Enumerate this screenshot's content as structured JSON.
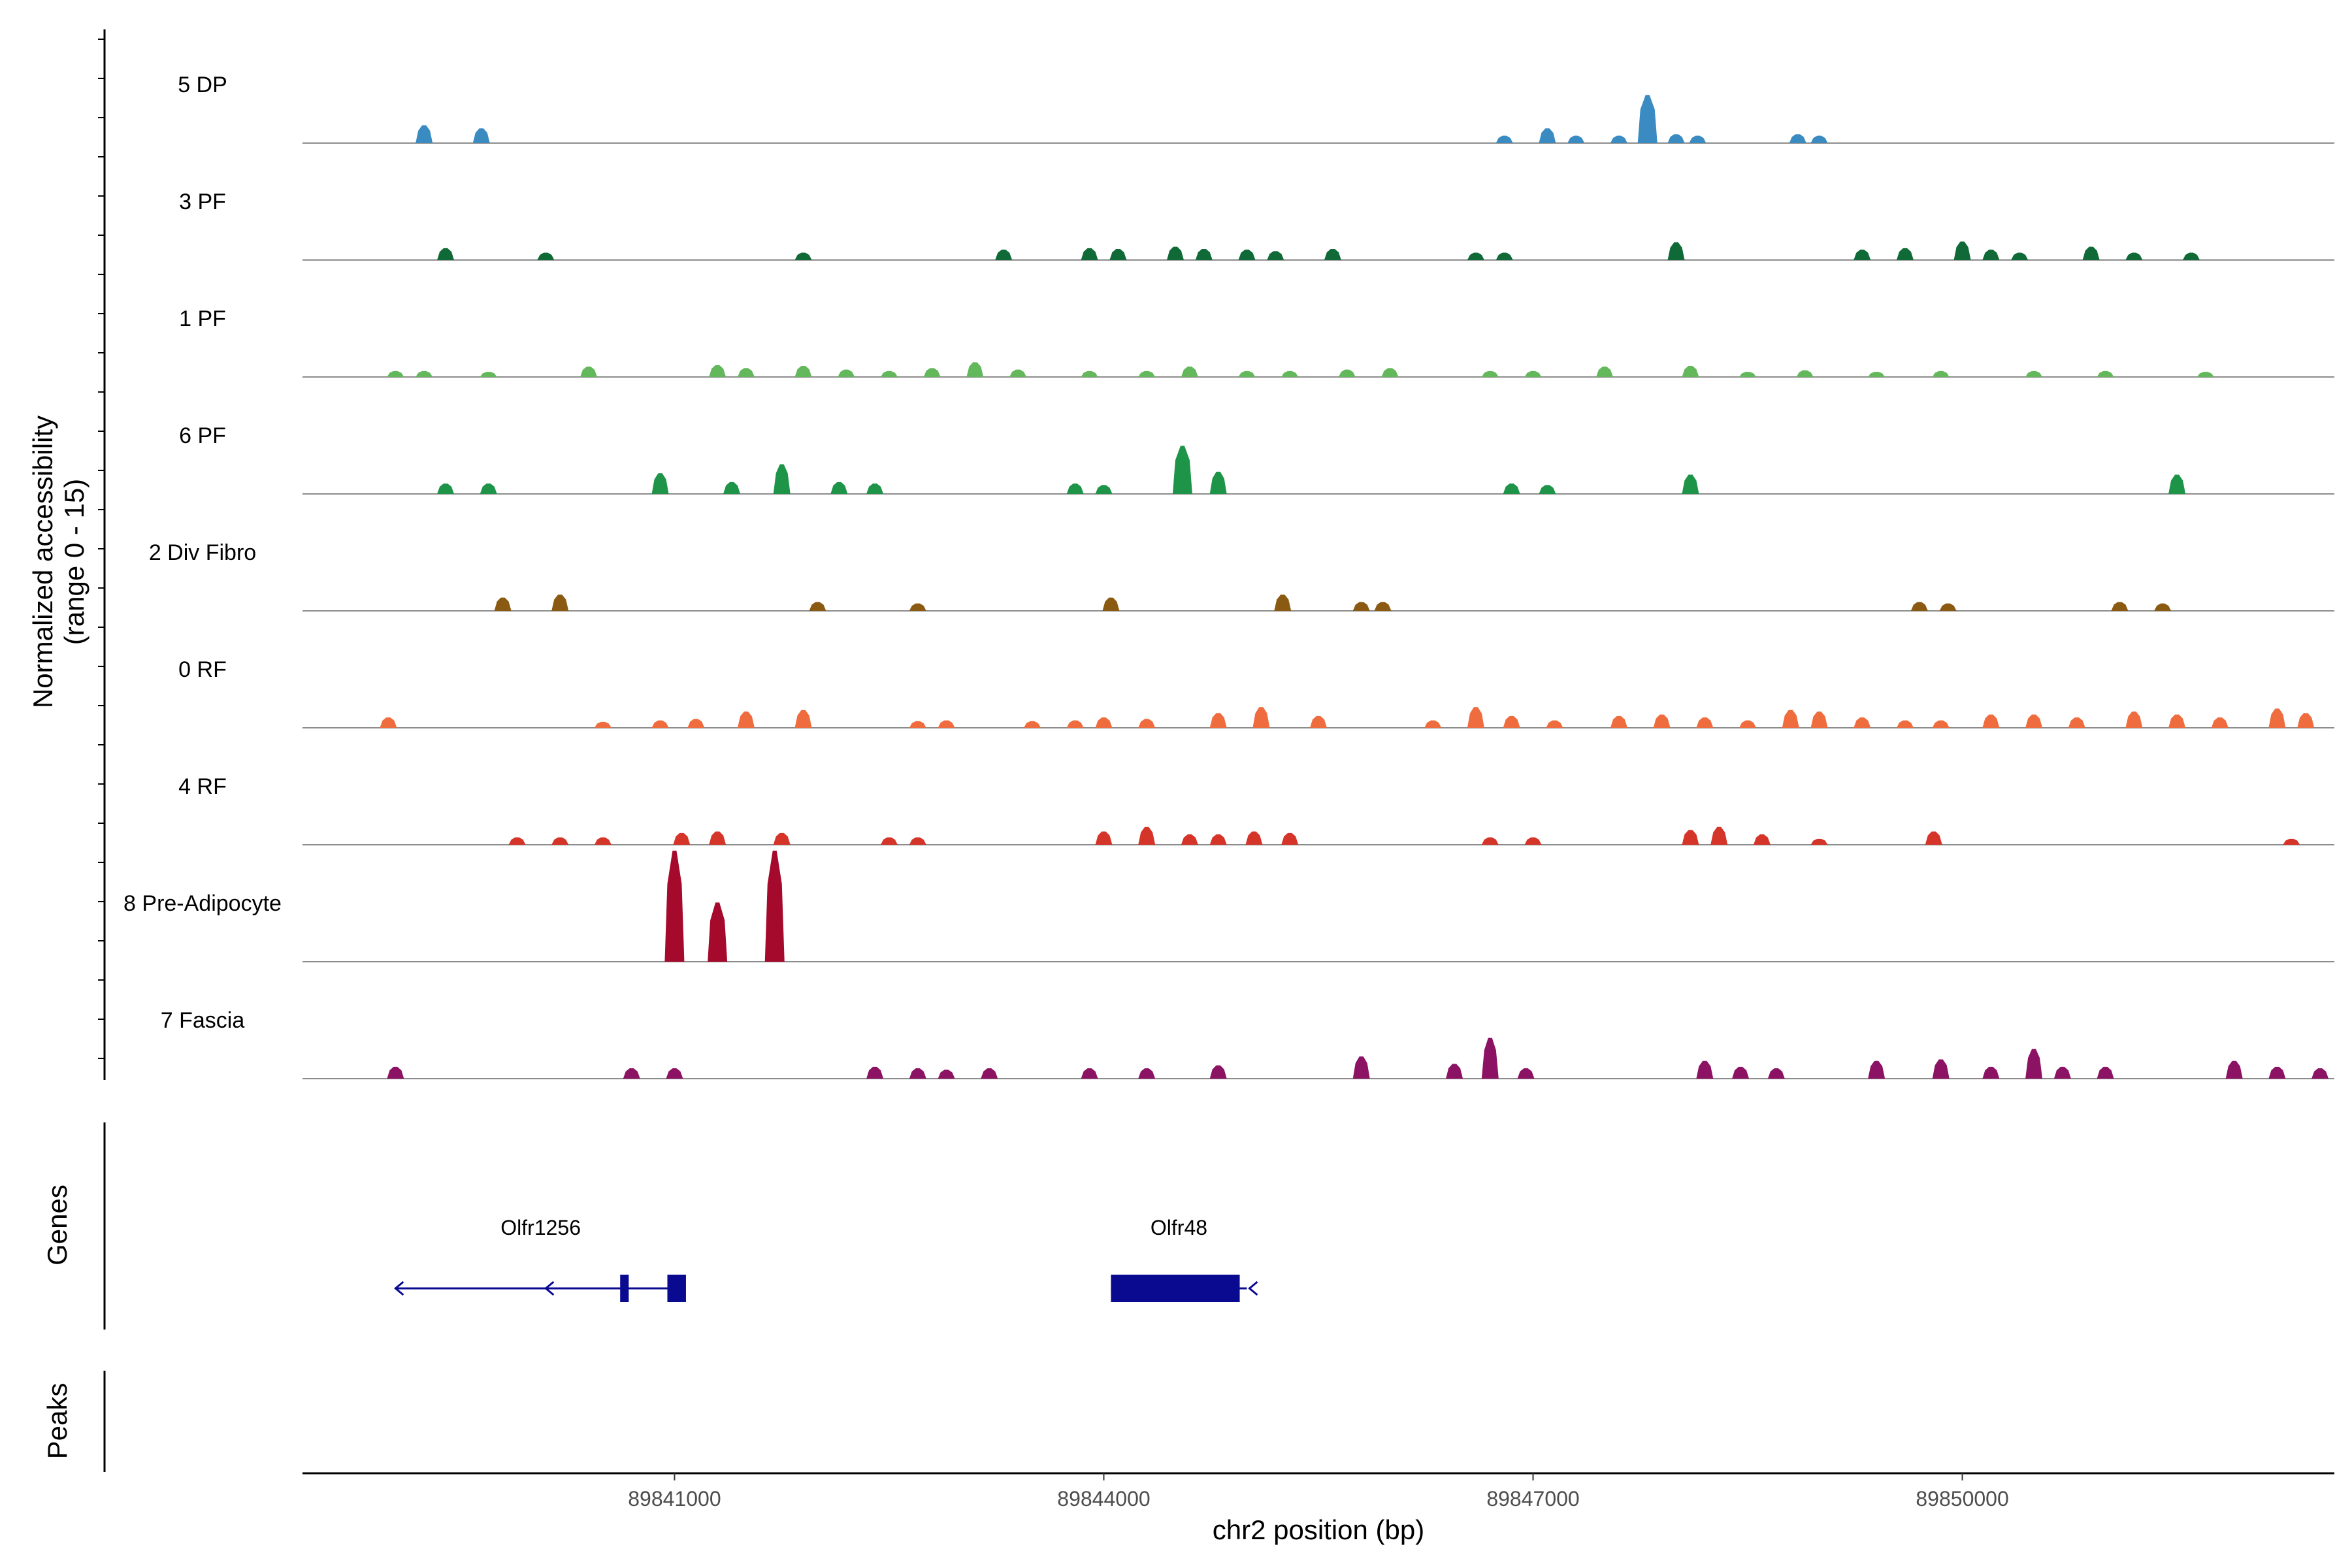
{
  "chart_data": {
    "type": "area",
    "subtype": "genome-coverage",
    "ylabel_line1": "Normalized accessibility",
    "ylabel_line2": "(range 0 - 15)",
    "ylim": [
      0,
      15
    ],
    "xlabel": "chr2 position (bp)",
    "xlim": [
      89838400,
      89852600
    ],
    "x_ticks": [
      89841000,
      89844000,
      89847000,
      89850000
    ],
    "x_tick_labels": [
      "89841000",
      "89844000",
      "89847000",
      "89850000"
    ],
    "series": [
      {
        "name": "5 DP",
        "color": "#3a8bc2",
        "peaks": [
          [
            89839250,
            2.4
          ],
          [
            89839650,
            2.0
          ],
          [
            89846800,
            1.0
          ],
          [
            89847100,
            2.0
          ],
          [
            89847300,
            1.0
          ],
          [
            89847800,
            6.5
          ],
          [
            89847600,
            1.0
          ],
          [
            89848000,
            1.2
          ],
          [
            89848150,
            1.0
          ],
          [
            89848850,
            1.2
          ],
          [
            89849000,
            1.0
          ]
        ]
      },
      {
        "name": "3 PF",
        "color": "#0f6a37",
        "peaks": [
          [
            89839400,
            1.6
          ],
          [
            89840100,
            1.0
          ],
          [
            89841900,
            1.0
          ],
          [
            89843300,
            1.4
          ],
          [
            89843900,
            1.6
          ],
          [
            89844100,
            1.5
          ],
          [
            89844500,
            1.8
          ],
          [
            89844700,
            1.5
          ],
          [
            89845000,
            1.4
          ],
          [
            89845200,
            1.2
          ],
          [
            89845600,
            1.5
          ],
          [
            89846600,
            1.0
          ],
          [
            89846800,
            1.0
          ],
          [
            89848000,
            2.4
          ],
          [
            89849300,
            1.4
          ],
          [
            89849600,
            1.6
          ],
          [
            89850000,
            2.5
          ],
          [
            89850200,
            1.4
          ],
          [
            89850400,
            1.0
          ],
          [
            89850900,
            1.8
          ],
          [
            89851200,
            1.0
          ],
          [
            89851600,
            1.0
          ]
        ]
      },
      {
        "name": "1 PF",
        "color": "#63b85b",
        "peaks": [
          [
            89839050,
            0.8
          ],
          [
            89839250,
            0.8
          ],
          [
            89839700,
            0.7
          ],
          [
            89840400,
            1.4
          ],
          [
            89841300,
            1.6
          ],
          [
            89841500,
            1.2
          ],
          [
            89841900,
            1.5
          ],
          [
            89842200,
            1.0
          ],
          [
            89842500,
            0.8
          ],
          [
            89842800,
            1.2
          ],
          [
            89843100,
            2.0
          ],
          [
            89843400,
            1.0
          ],
          [
            89843900,
            0.8
          ],
          [
            89844300,
            0.8
          ],
          [
            89844600,
            1.4
          ],
          [
            89845000,
            0.8
          ],
          [
            89845300,
            0.8
          ],
          [
            89845700,
            1.0
          ],
          [
            89846000,
            1.2
          ],
          [
            89846700,
            0.8
          ],
          [
            89847000,
            0.8
          ],
          [
            89847500,
            1.4
          ],
          [
            89848100,
            1.5
          ],
          [
            89848500,
            0.7
          ],
          [
            89848900,
            0.9
          ],
          [
            89849400,
            0.7
          ],
          [
            89849850,
            0.8
          ],
          [
            89850500,
            0.8
          ],
          [
            89851000,
            0.8
          ],
          [
            89851700,
            0.7
          ]
        ]
      },
      {
        "name": "6 PF",
        "color": "#1d9448",
        "peaks": [
          [
            89839400,
            1.4
          ],
          [
            89839700,
            1.4
          ],
          [
            89840900,
            2.8
          ],
          [
            89841400,
            1.6
          ],
          [
            89841750,
            4.0
          ],
          [
            89842150,
            1.6
          ],
          [
            89842400,
            1.4
          ],
          [
            89843800,
            1.4
          ],
          [
            89844000,
            1.2
          ],
          [
            89844550,
            6.5
          ],
          [
            89844800,
            3.0
          ],
          [
            89846850,
            1.4
          ],
          [
            89847100,
            1.2
          ],
          [
            89848100,
            2.6
          ],
          [
            89851500,
            2.6
          ]
        ]
      },
      {
        "name": "2 Div Fibro",
        "color": "#8b5a12",
        "peaks": [
          [
            89839800,
            1.8
          ],
          [
            89840200,
            2.2
          ],
          [
            89842000,
            1.2
          ],
          [
            89842700,
            1.0
          ],
          [
            89844050,
            1.8
          ],
          [
            89845250,
            2.2
          ],
          [
            89845800,
            1.2
          ],
          [
            89845950,
            1.2
          ],
          [
            89849700,
            1.2
          ],
          [
            89849900,
            1.0
          ],
          [
            89851100,
            1.2
          ],
          [
            89851400,
            1.0
          ]
        ]
      },
      {
        "name": "0 RF",
        "color": "#ef6c3e",
        "peaks": [
          [
            89839000,
            1.4
          ],
          [
            89840500,
            0.8
          ],
          [
            89840900,
            1.0
          ],
          [
            89841150,
            1.2
          ],
          [
            89841500,
            2.2
          ],
          [
            89841900,
            2.4
          ],
          [
            89842700,
            0.9
          ],
          [
            89842900,
            1.0
          ],
          [
            89843500,
            0.9
          ],
          [
            89843800,
            1.0
          ],
          [
            89844000,
            1.4
          ],
          [
            89844300,
            1.2
          ],
          [
            89844800,
            2.0
          ],
          [
            89845100,
            2.8
          ],
          [
            89845500,
            1.6
          ],
          [
            89846300,
            1.0
          ],
          [
            89846600,
            2.8
          ],
          [
            89846850,
            1.6
          ],
          [
            89847150,
            1.0
          ],
          [
            89847600,
            1.6
          ],
          [
            89847900,
            1.8
          ],
          [
            89848200,
            1.4
          ],
          [
            89848500,
            1.0
          ],
          [
            89848800,
            2.4
          ],
          [
            89849000,
            2.2
          ],
          [
            89849300,
            1.4
          ],
          [
            89849600,
            1.0
          ],
          [
            89849850,
            1.0
          ],
          [
            89850200,
            1.8
          ],
          [
            89850500,
            1.8
          ],
          [
            89850800,
            1.4
          ],
          [
            89851200,
            2.2
          ],
          [
            89851500,
            1.8
          ],
          [
            89851800,
            1.4
          ],
          [
            89852200,
            2.6
          ],
          [
            89852400,
            2.0
          ]
        ]
      },
      {
        "name": "4 RF",
        "color": "#d53428",
        "peaks": [
          [
            89839900,
            1.0
          ],
          [
            89840200,
            1.0
          ],
          [
            89840500,
            1.0
          ],
          [
            89841050,
            1.6
          ],
          [
            89841300,
            1.8
          ],
          [
            89841750,
            1.6
          ],
          [
            89842500,
            1.0
          ],
          [
            89842700,
            1.0
          ],
          [
            89844000,
            1.8
          ],
          [
            89844300,
            2.4
          ],
          [
            89844600,
            1.4
          ],
          [
            89844800,
            1.4
          ],
          [
            89845050,
            1.8
          ],
          [
            89845300,
            1.6
          ],
          [
            89846700,
            1.0
          ],
          [
            89847000,
            1.0
          ],
          [
            89848100,
            2.0
          ],
          [
            89848300,
            2.4
          ],
          [
            89848600,
            1.4
          ],
          [
            89849000,
            0.8
          ],
          [
            89849800,
            1.8
          ],
          [
            89852300,
            0.8
          ]
        ]
      },
      {
        "name": "8 Pre-Adipocyte",
        "color": "#a50a2c",
        "peaks": [
          [
            89841000,
            15.0
          ],
          [
            89841300,
            8.0
          ],
          [
            89841700,
            15.0
          ]
        ]
      },
      {
        "name": "7 Fascia",
        "color": "#8c1263",
        "peaks": [
          [
            89839050,
            1.6
          ],
          [
            89840700,
            1.4
          ],
          [
            89841000,
            1.4
          ],
          [
            89842400,
            1.6
          ],
          [
            89842700,
            1.4
          ],
          [
            89842900,
            1.2
          ],
          [
            89843200,
            1.4
          ],
          [
            89843900,
            1.4
          ],
          [
            89844300,
            1.4
          ],
          [
            89844800,
            1.8
          ],
          [
            89845800,
            3.0
          ],
          [
            89846450,
            2.0
          ],
          [
            89846700,
            5.5
          ],
          [
            89846950,
            1.4
          ],
          [
            89848200,
            2.4
          ],
          [
            89848450,
            1.6
          ],
          [
            89848700,
            1.4
          ],
          [
            89849400,
            2.4
          ],
          [
            89849850,
            2.6
          ],
          [
            89850200,
            1.6
          ],
          [
            89850500,
            4.0
          ],
          [
            89850700,
            1.6
          ],
          [
            89851000,
            1.6
          ],
          [
            89851900,
            2.4
          ],
          [
            89852200,
            1.6
          ],
          [
            89852500,
            1.4
          ]
        ]
      }
    ],
    "genes_track_label": "Genes",
    "peaks_track_label": "Peaks",
    "genes": [
      {
        "name": "Olfr1256",
        "strand": "-",
        "start": 89839050,
        "end": 89841080,
        "exons": [
          [
            89840620,
            89840680
          ],
          [
            89840950,
            89841080
          ]
        ],
        "color": "#0a0a91"
      },
      {
        "name": "Olfr48",
        "strand": "-",
        "start": 89844050,
        "end": 89845000,
        "exons": [
          [
            89844050,
            89844950
          ]
        ],
        "color": "#0a0a91"
      }
    ]
  }
}
